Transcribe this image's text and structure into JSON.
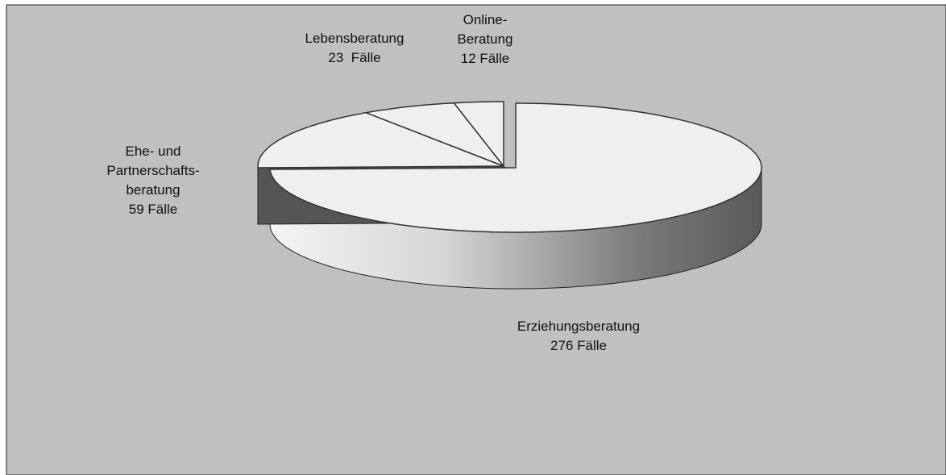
{
  "chart_data": {
    "type": "pie3d",
    "categories": [
      "Erziehungsberatung",
      "Ehe- und\nPartnerschafts-\nberatung",
      "Lebensberatung",
      "Online-\nBeratung"
    ],
    "values": [
      276,
      59,
      23,
      12
    ],
    "value_labels": [
      "276 Fälle",
      "59 Fälle",
      "23  Fälle",
      "12 Fälle"
    ],
    "color": "#efefef"
  }
}
